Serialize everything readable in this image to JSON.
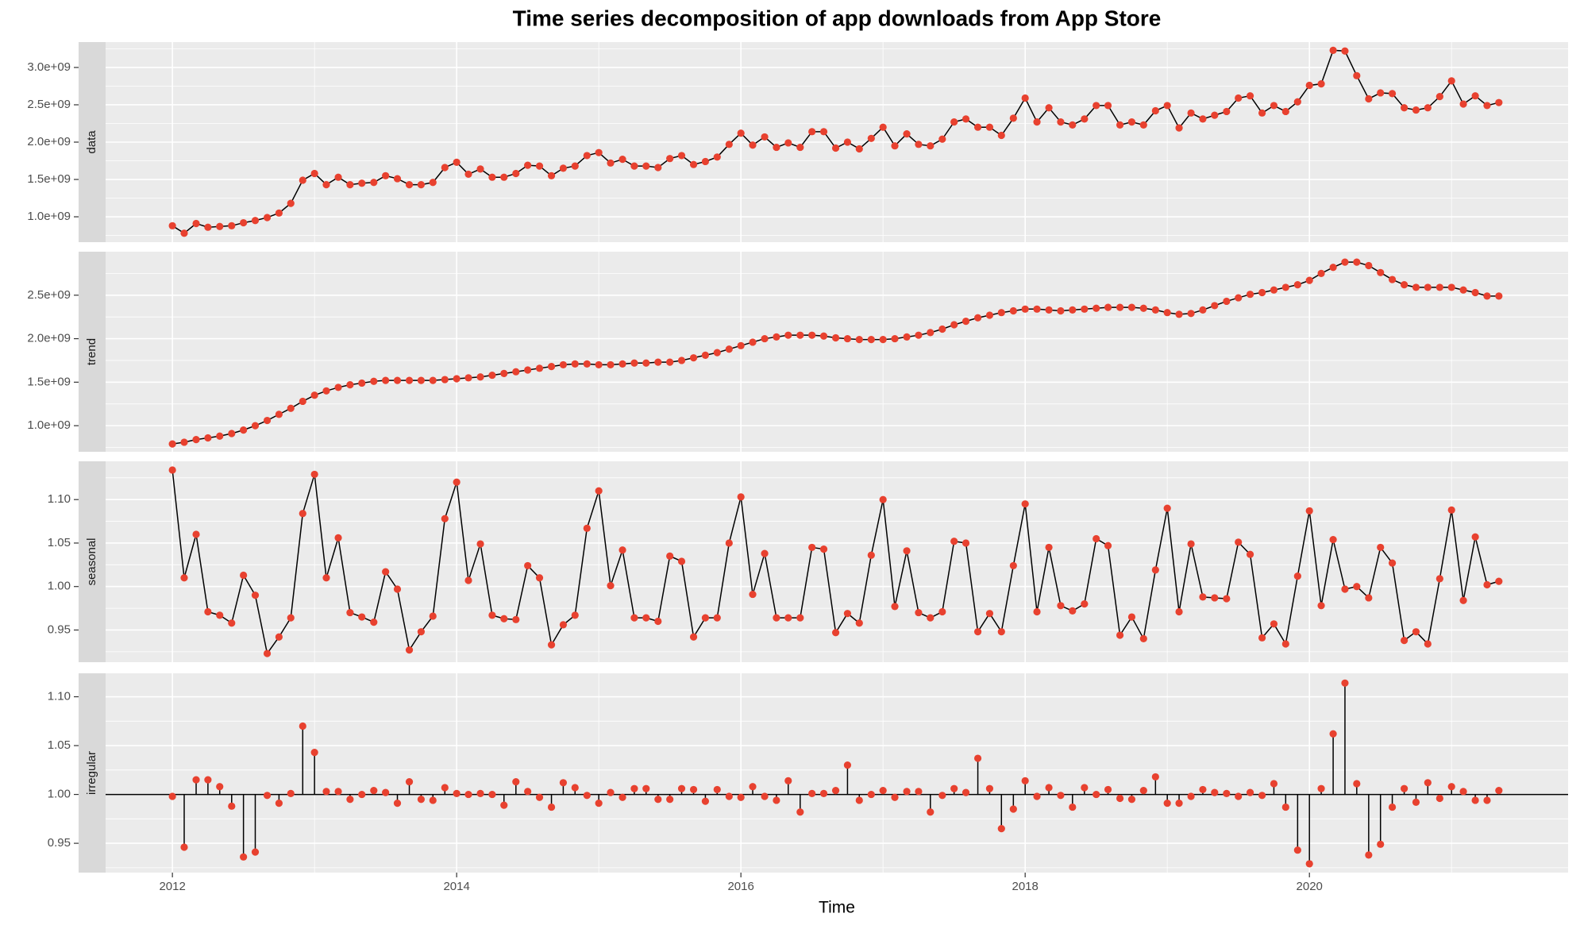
{
  "chart_data": {
    "type": "facet",
    "title": "Time series decomposition of app downloads from App Store",
    "xlabel": "Time",
    "xlim": [
      2011.53,
      2021.82
    ],
    "xticks": [
      2012,
      2014,
      2016,
      2018,
      2020
    ],
    "grid": true,
    "x": [
      2012,
      2012.083,
      2012.167,
      2012.25,
      2012.333,
      2012.417,
      2012.5,
      2012.583,
      2012.667,
      2012.75,
      2012.833,
      2012.917,
      2013,
      2013.083,
      2013.167,
      2013.25,
      2013.333,
      2013.417,
      2013.5,
      2013.583,
      2013.667,
      2013.75,
      2013.833,
      2013.917,
      2014,
      2014.083,
      2014.167,
      2014.25,
      2014.333,
      2014.417,
      2014.5,
      2014.583,
      2014.667,
      2014.75,
      2014.833,
      2014.917,
      2015,
      2015.083,
      2015.167,
      2015.25,
      2015.333,
      2015.417,
      2015.5,
      2015.583,
      2015.667,
      2015.75,
      2015.833,
      2015.917,
      2016,
      2016.083,
      2016.167,
      2016.25,
      2016.333,
      2016.417,
      2016.5,
      2016.583,
      2016.667,
      2016.75,
      2016.833,
      2016.917,
      2017,
      2017.083,
      2017.167,
      2017.25,
      2017.333,
      2017.417,
      2017.5,
      2017.583,
      2017.667,
      2017.75,
      2017.833,
      2017.917,
      2018,
      2018.083,
      2018.167,
      2018.25,
      2018.333,
      2018.417,
      2018.5,
      2018.583,
      2018.667,
      2018.75,
      2018.833,
      2018.917,
      2019,
      2019.083,
      2019.167,
      2019.25,
      2019.333,
      2019.417,
      2019.5,
      2019.583,
      2019.667,
      2019.75,
      2019.833,
      2019.917,
      2020,
      2020.083,
      2020.167,
      2020.25,
      2020.333,
      2020.417,
      2020.5,
      2020.583,
      2020.667,
      2020.75,
      2020.833,
      2020.917,
      2021,
      2021.083,
      2021.167,
      2021.25,
      2021.333
    ],
    "panels": [
      {
        "type": "line",
        "label": "data",
        "color": "#e8412f",
        "line_color": "#000000",
        "ylim": [
          660000000.0,
          3340000000.0
        ],
        "yticks": [
          {
            "value": 1000000000.0,
            "label": "1.0e+09"
          },
          {
            "value": 1500000000.0,
            "label": "1.5e+09"
          },
          {
            "value": 2000000000.0,
            "label": "2.0e+09"
          },
          {
            "value": 2500000000.0,
            "label": "2.5e+09"
          },
          {
            "value": 3000000000.0,
            "label": "3.0e+09"
          }
        ],
        "values": [
          880000000.0,
          780000000.0,
          910000000.0,
          860000000.0,
          870000000.0,
          880000000.0,
          920000000.0,
          950000000.0,
          990000000.0,
          1050000000.0,
          1180000000.0,
          1490000000.0,
          1580000000.0,
          1430000000.0,
          1530000000.0,
          1430000000.0,
          1450000000.0,
          1460000000.0,
          1550000000.0,
          1510000000.0,
          1430000000.0,
          1430000000.0,
          1460000000.0,
          1660000000.0,
          1730000000.0,
          1570000000.0,
          1640000000.0,
          1530000000.0,
          1530000000.0,
          1580000000.0,
          1690000000.0,
          1680000000.0,
          1550000000.0,
          1650000000.0,
          1680000000.0,
          1820000000.0,
          1860000000.0,
          1720000000.0,
          1770000000.0,
          1680000000.0,
          1680000000.0,
          1660000000.0,
          1780000000.0,
          1820000000.0,
          1700000000.0,
          1740000000.0,
          1800000000.0,
          1970000000.0,
          2120000000.0,
          1960000000.0,
          2070000000.0,
          1930000000.0,
          1990000000.0,
          1930000000.0,
          2140000000.0,
          2140000000.0,
          1920000000.0,
          2000000000.0,
          1910000000.0,
          2050000000.0,
          2200000000.0,
          1950000000.0,
          2110000000.0,
          1970000000.0,
          1950000000.0,
          2040000000.0,
          2270000000.0,
          2310000000.0,
          2200000000.0,
          2200000000.0,
          2090000000.0,
          2320000000.0,
          2590000000.0,
          2270000000.0,
          2460000000.0,
          2270000000.0,
          2230000000.0,
          2310000000.0,
          2490000000.0,
          2490000000.0,
          2230000000.0,
          2270000000.0,
          2230000000.0,
          2420000000.0,
          2490000000.0,
          2190000000.0,
          2390000000.0,
          2310000000.0,
          2360000000.0,
          2410000000.0,
          2590000000.0,
          2620000000.0,
          2390000000.0,
          2490000000.0,
          2410000000.0,
          2540000000.0,
          2760000000.0,
          2780000000.0,
          3230000000.0,
          3220000000.0,
          2890000000.0,
          2580000000.0,
          2660000000.0,
          2650000000.0,
          2460000000.0,
          2430000000.0,
          2460000000.0,
          2610000000.0,
          2820000000.0,
          2510000000.0,
          2620000000.0,
          2490000000.0,
          2530000000.0
        ]
      },
      {
        "type": "line",
        "label": "trend",
        "color": "#e8412f",
        "line_color": "#000000",
        "ylim": [
          700000000.0,
          3000000000.0
        ],
        "yticks": [
          {
            "value": 1000000000.0,
            "label": "1.0e+09"
          },
          {
            "value": 1500000000.0,
            "label": "1.5e+09"
          },
          {
            "value": 2000000000.0,
            "label": "2.0e+09"
          },
          {
            "value": 2500000000.0,
            "label": "2.5e+09"
          }
        ],
        "values": [
          790000000.0,
          810000000.0,
          840000000.0,
          860000000.0,
          880000000.0,
          910000000.0,
          950000000.0,
          1000000000.0,
          1060000000.0,
          1130000000.0,
          1200000000.0,
          1280000000.0,
          1350000000.0,
          1400000000.0,
          1440000000.0,
          1470000000.0,
          1490000000.0,
          1510000000.0,
          1520000000.0,
          1520000000.0,
          1520000000.0,
          1520000000.0,
          1520000000.0,
          1530000000.0,
          1540000000.0,
          1550000000.0,
          1560000000.0,
          1580000000.0,
          1600000000.0,
          1620000000.0,
          1640000000.0,
          1660000000.0,
          1680000000.0,
          1700000000.0,
          1710000000.0,
          1710000000.0,
          1700000000.0,
          1700000000.0,
          1710000000.0,
          1720000000.0,
          1720000000.0,
          1730000000.0,
          1730000000.0,
          1750000000.0,
          1780000000.0,
          1810000000.0,
          1840000000.0,
          1880000000.0,
          1920000000.0,
          1960000000.0,
          2000000000.0,
          2020000000.0,
          2040000000.0,
          2040000000.0,
          2040000000.0,
          2030000000.0,
          2010000000.0,
          2000000000.0,
          1990000000.0,
          1990000000.0,
          1990000000.0,
          2000000000.0,
          2020000000.0,
          2040000000.0,
          2070000000.0,
          2110000000.0,
          2160000000.0,
          2200000000.0,
          2240000000.0,
          2270000000.0,
          2300000000.0,
          2320000000.0,
          2340000000.0,
          2340000000.0,
          2330000000.0,
          2320000000.0,
          2330000000.0,
          2340000000.0,
          2350000000.0,
          2360000000.0,
          2360000000.0,
          2360000000.0,
          2350000000.0,
          2330000000.0,
          2300000000.0,
          2280000000.0,
          2290000000.0,
          2330000000.0,
          2380000000.0,
          2430000000.0,
          2470000000.0,
          2510000000.0,
          2530000000.0,
          2560000000.0,
          2590000000.0,
          2620000000.0,
          2670000000.0,
          2750000000.0,
          2820000000.0,
          2880000000.0,
          2880000000.0,
          2840000000.0,
          2760000000.0,
          2680000000.0,
          2620000000.0,
          2590000000.0,
          2590000000.0,
          2590000000.0,
          2590000000.0,
          2560000000.0,
          2530000000.0,
          2490000000.0,
          2490000000.0
        ]
      },
      {
        "type": "line",
        "label": "seasonal",
        "color": "#e8412f",
        "line_color": "#000000",
        "ylim": [
          0.913,
          1.144
        ],
        "yticks": [
          0.95,
          {
            "value": 1,
            "label": "1.00"
          },
          1.05,
          {
            "value": 1.1,
            "label": "1.10"
          }
        ],
        "values": [
          1.134,
          1.01,
          1.06,
          0.971,
          0.967,
          0.958,
          1.013,
          0.99,
          0.923,
          0.942,
          0.964,
          1.084,
          1.129,
          1.01,
          1.056,
          0.97,
          0.965,
          0.959,
          1.017,
          0.997,
          0.927,
          0.948,
          0.966,
          1.078,
          1.12,
          1.007,
          1.049,
          0.967,
          0.963,
          0.962,
          1.024,
          1.01,
          0.933,
          0.956,
          0.967,
          1.067,
          1.11,
          1.001,
          1.042,
          0.964,
          0.964,
          0.96,
          1.035,
          1.029,
          0.942,
          0.964,
          0.964,
          1.05,
          1.103,
          0.991,
          1.038,
          0.964,
          0.964,
          0.964,
          1.045,
          1.043,
          0.947,
          0.969,
          0.958,
          1.036,
          1.1,
          0.977,
          1.041,
          0.97,
          0.964,
          0.971,
          1.052,
          1.05,
          0.948,
          0.969,
          0.948,
          1.024,
          1.095,
          0.971,
          1.045,
          0.978,
          0.972,
          0.98,
          1.055,
          1.047,
          0.944,
          0.965,
          0.94,
          1.019,
          1.09,
          0.971,
          1.049,
          0.988,
          0.987,
          0.986,
          1.051,
          1.037,
          0.941,
          0.957,
          0.934,
          1.012,
          1.087,
          0.978,
          1.054,
          0.997,
          1.0,
          0.987,
          1.045,
          1.027,
          0.938,
          0.948,
          0.934,
          1.009,
          1.088,
          0.984,
          1.057,
          1.002,
          1.006
        ]
      },
      {
        "type": "stem",
        "label": "irregular",
        "color": "#e8412f",
        "line_color": "#000000",
        "baseline": 1,
        "ylim": [
          0.92,
          1.124
        ],
        "yticks": [
          0.95,
          {
            "value": 1,
            "label": "1.00"
          },
          1.05,
          {
            "value": 1.1,
            "label": "1.10"
          }
        ],
        "values": [
          0.998,
          0.946,
          1.015,
          1.015,
          1.008,
          0.988,
          0.936,
          0.941,
          0.999,
          0.991,
          1.001,
          1.07,
          1.043,
          1.003,
          1.003,
          0.995,
          1.0,
          1.004,
          1.002,
          0.991,
          1.013,
          0.995,
          0.994,
          1.007,
          1.001,
          1.0,
          1.001,
          1.0,
          0.989,
          1.013,
          1.003,
          0.997,
          0.987,
          1.012,
          1.007,
          0.999,
          0.991,
          1.002,
          0.997,
          1.006,
          1.006,
          0.995,
          0.995,
          1.006,
          1.005,
          0.993,
          1.005,
          0.998,
          0.997,
          1.008,
          0.998,
          0.994,
          1.014,
          0.982,
          1.001,
          1.001,
          1.004,
          1.03,
          0.994,
          1.0,
          1.004,
          0.997,
          1.003,
          1.003,
          0.982,
          0.999,
          1.006,
          1.002,
          1.037,
          1.006,
          0.965,
          0.985,
          1.014,
          0.998,
          1.007,
          0.999,
          0.987,
          1.007,
          1.0,
          1.005,
          0.996,
          0.995,
          1.004,
          1.018,
          0.991,
          0.991,
          0.998,
          1.005,
          1.002,
          1.001,
          0.998,
          1.002,
          0.999,
          1.011,
          0.987,
          0.943,
          0.929,
          1.006,
          1.062,
          1.114,
          1.011,
          0.938,
          0.949,
          0.987,
          1.006,
          0.992,
          1.012,
          0.996,
          1.008,
          1.003,
          0.994,
          0.994,
          1.004
        ]
      }
    ]
  }
}
